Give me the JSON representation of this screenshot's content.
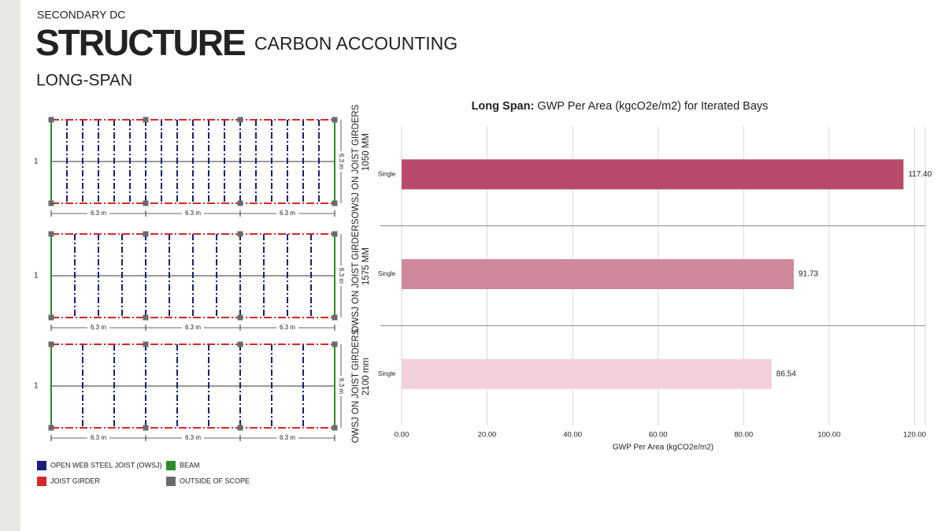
{
  "header": {
    "kicker": "SECONDARY DC",
    "title": "STRUCTURE",
    "subtitle": "CARBON ACCOUNTING",
    "section": "LONG-SPAN"
  },
  "diagrams": [
    {
      "row_label": "1",
      "label": "OWSJ ON JOIST GIRDERS",
      "size": "1050 MM",
      "span_labels": [
        "6.3 m",
        "6.3 m",
        "6.3 m"
      ],
      "depth_label": "6.3 m"
    },
    {
      "row_label": "1",
      "label": "OWSJ ON JOIST GIRDERS",
      "size": "1575 MM",
      "span_labels": [
        "6.3 m",
        "6.3 m",
        "6.3 m"
      ],
      "depth_label": "6.3 m"
    },
    {
      "row_label": "1",
      "label": "OWSJ ON JOIST GIRDERS",
      "size": "2100 mm",
      "span_labels": [
        "6.3 m",
        "6.3 m",
        "6.3 m"
      ],
      "depth_label": "6.3 m"
    }
  ],
  "legend": [
    {
      "label": "OPEN WEB STEEL JOIST (OWSJ)",
      "color": "#1c1c7c"
    },
    {
      "label": "JOIST GIRDER",
      "color": "#d62828"
    },
    {
      "label": "BEAM",
      "color": "#2a8c2a"
    },
    {
      "label": "OUTSIDE OF SCOPE",
      "color": "#6b6b6b"
    }
  ],
  "chart_data": {
    "type": "bar",
    "orientation": "horizontal",
    "title_bold": "Long Span:",
    "title": "GWP Per Area (kgcO2e/m2) for Iterated Bays",
    "x_label": "GWP Per Area (kgCO2e/m2)",
    "categories": [
      "Single",
      "Single",
      "Single"
    ],
    "values": [
      117.4,
      91.73,
      86.54
    ],
    "value_labels": [
      "117.40",
      "91.73",
      "86.54"
    ],
    "colors": [
      "#b94a6a",
      "#cf889c",
      "#f2d1da"
    ],
    "xlim": [
      0,
      122.5
    ],
    "xticks": [
      {
        "value": 0,
        "label": "0.00"
      },
      {
        "value": 20,
        "label": "20.00"
      },
      {
        "value": 40,
        "label": "40.00"
      },
      {
        "value": 60,
        "label": "60.00"
      },
      {
        "value": 80,
        "label": "80.00"
      },
      {
        "value": 100,
        "label": "100.00"
      },
      {
        "value": 120,
        "label": "120.00"
      }
    ],
    "grid": true
  }
}
